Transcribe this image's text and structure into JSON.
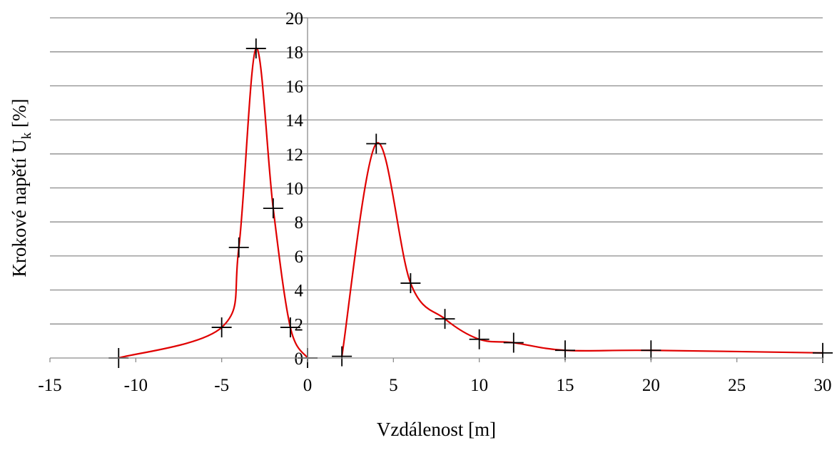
{
  "chart_data": {
    "type": "scatter",
    "xlabel": "Vzdálenost [m]",
    "ylabel_main": "Krokové napětí U",
    "ylabel_sub": "k",
    "ylabel_tail": " [%]",
    "xlim": [
      -15,
      30
    ],
    "ylim": [
      0,
      20
    ],
    "x_ticks": [
      -15,
      -10,
      -5,
      0,
      5,
      10,
      15,
      20,
      25,
      30
    ],
    "y_ticks": [
      0,
      2,
      4,
      6,
      8,
      10,
      12,
      14,
      16,
      18,
      20
    ],
    "grid": "horizontal",
    "series": [
      {
        "values": [
          {
            "x": -11,
            "y": 0.0
          },
          {
            "x": -5,
            "y": 1.8
          },
          {
            "x": -4,
            "y": 6.5
          },
          {
            "x": -3,
            "y": 18.2
          },
          {
            "x": -2,
            "y": 8.8
          },
          {
            "x": -1,
            "y": 1.8
          },
          {
            "x": 0,
            "y": 0.0
          }
        ]
      },
      {
        "values": [
          {
            "x": 2,
            "y": 0.1
          },
          {
            "x": 4,
            "y": 12.6
          },
          {
            "x": 6,
            "y": 4.4
          },
          {
            "x": 8,
            "y": 2.3
          },
          {
            "x": 10,
            "y": 1.1
          },
          {
            "x": 12,
            "y": 0.9
          },
          {
            "x": 15,
            "y": 0.45
          },
          {
            "x": 20,
            "y": 0.45
          },
          {
            "x": 30,
            "y": 0.3
          }
        ]
      }
    ],
    "colors": {
      "line": "#e00000",
      "marker": "#000000",
      "grid": "#8c8c8c"
    }
  }
}
